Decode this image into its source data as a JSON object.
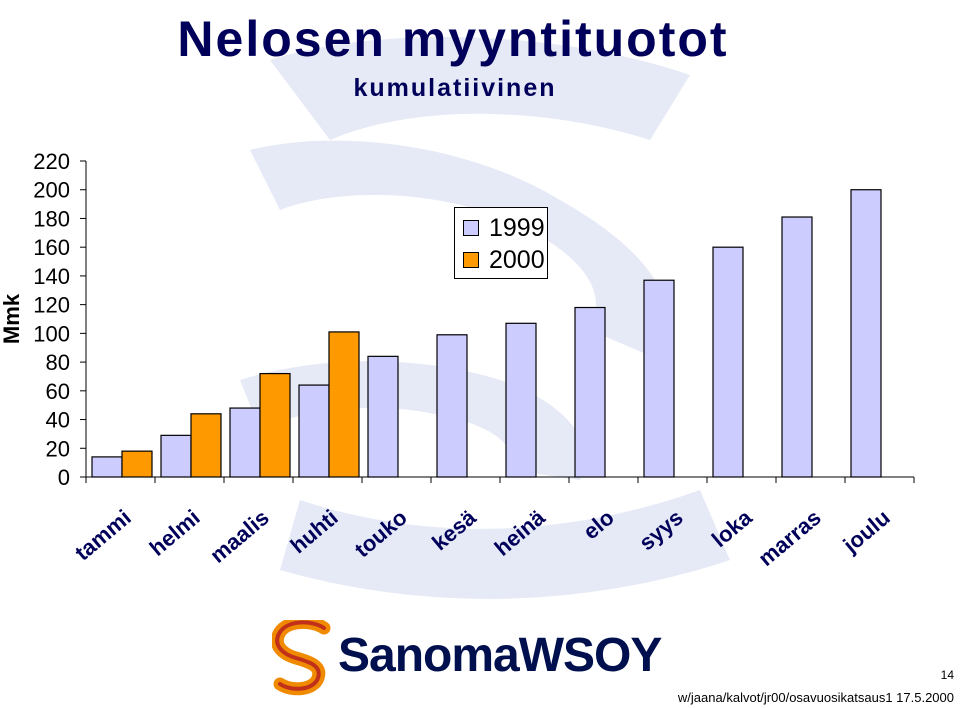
{
  "slide": {
    "title": "Nelosen myyntituotot",
    "subtitle": "kumulatiivinen",
    "page_number": "14",
    "footer_path": "w/jaana/kalvot/jr00/osavuosikatsaus1 17.5.2000"
  },
  "logo": {
    "text": "SanomaWSOY",
    "icon": "sanoma-s-logo-icon"
  },
  "colors": {
    "title": "#00005a",
    "series_1999": "#ccccff",
    "series_2000": "#ff9900",
    "axis": "#000000",
    "watermark": "#e6e9f6"
  },
  "chart_data": {
    "type": "bar",
    "title": "Nelosen myyntituotot",
    "subtitle": "kumulatiivinen",
    "ylabel": "Mmk",
    "xlabel": "",
    "ylim": [
      0,
      220
    ],
    "yticks": [
      "0",
      "20",
      "40",
      "60",
      "80",
      "100",
      "120",
      "140",
      "160",
      "180",
      "200",
      "220"
    ],
    "grid": false,
    "legend_position": "top-center",
    "categories": [
      "tammi",
      "helmi",
      "maalis",
      "huhti",
      "touko",
      "kesä",
      "heinä",
      "elo",
      "syys",
      "loka",
      "marras",
      "joulu"
    ],
    "series": [
      {
        "name": "1999",
        "values": [
          14,
          29,
          48,
          64,
          84,
          99,
          107,
          118,
          137,
          160,
          181,
          200
        ]
      },
      {
        "name": "2000",
        "values": [
          18,
          44,
          72,
          101,
          null,
          null,
          null,
          null,
          null,
          null,
          null,
          null
        ]
      }
    ]
  }
}
